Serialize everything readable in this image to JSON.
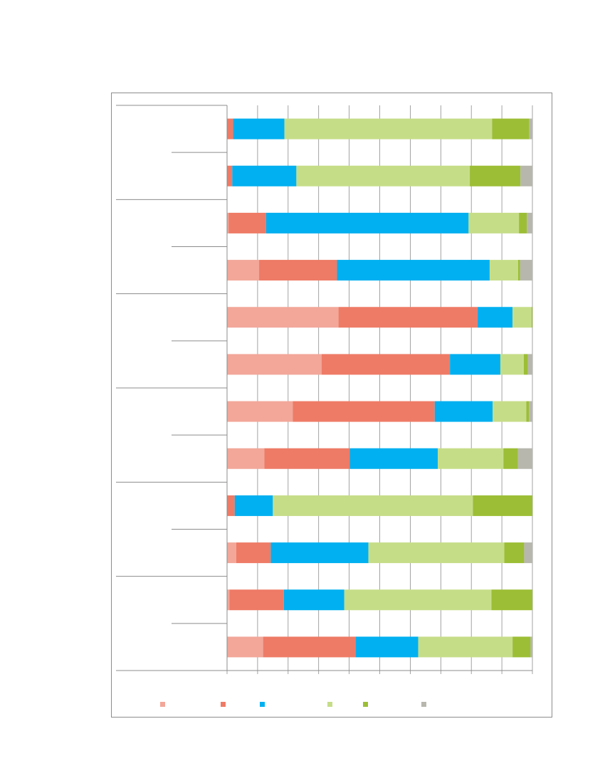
{
  "chart_data": {
    "type": "bar",
    "orientation": "horizontal",
    "stacked": "percent",
    "title": "",
    "xlabel": "",
    "ylabel": "",
    "xlim": [
      0,
      100
    ],
    "x_ticks": [
      0,
      10,
      20,
      30,
      40,
      50,
      60,
      70,
      80,
      90,
      100
    ],
    "grid": true,
    "legend_position": "bottom",
    "group_labels": [
      "",
      "",
      "",
      "",
      "",
      ""
    ],
    "category_labels": [
      "",
      "",
      "",
      "",
      "",
      "",
      "",
      "",
      "",
      "",
      "",
      ""
    ],
    "series": [
      {
        "name": "",
        "color": "#F2A799",
        "values": [
          0,
          0,
          0.5,
          10.5,
          36.5,
          31,
          21.5,
          12.2,
          0,
          3,
          0.8,
          11.8
        ]
      },
      {
        "name": "",
        "color": "#EE7B66",
        "values": [
          2,
          1.7,
          12.3,
          25.5,
          45.5,
          42,
          46.5,
          28,
          2.5,
          11.3,
          17.8,
          30.3
        ]
      },
      {
        "name": "",
        "color": "#00B0F0",
        "values": [
          16.8,
          21,
          66.3,
          50,
          11.5,
          16.5,
          19,
          28.8,
          12.5,
          32,
          19.8,
          20.5
        ]
      },
      {
        "name": "",
        "color": "#C6DD88",
        "values": [
          68,
          56.8,
          16.5,
          9.3,
          6.2,
          7.7,
          11,
          21.5,
          65.5,
          44.5,
          48.2,
          30.9
        ]
      },
      {
        "name": "",
        "color": "#9CBE36",
        "values": [
          12.2,
          16.6,
          2.6,
          0.7,
          0.3,
          1.3,
          0.9,
          4.8,
          19.5,
          6.5,
          13.4,
          5.9
        ]
      },
      {
        "name": "",
        "color": "#B7B7AE",
        "values": [
          1,
          3.9,
          1.8,
          4,
          0,
          1.5,
          1.1,
          4.7,
          0,
          2.7,
          0,
          0.6
        ]
      }
    ]
  }
}
